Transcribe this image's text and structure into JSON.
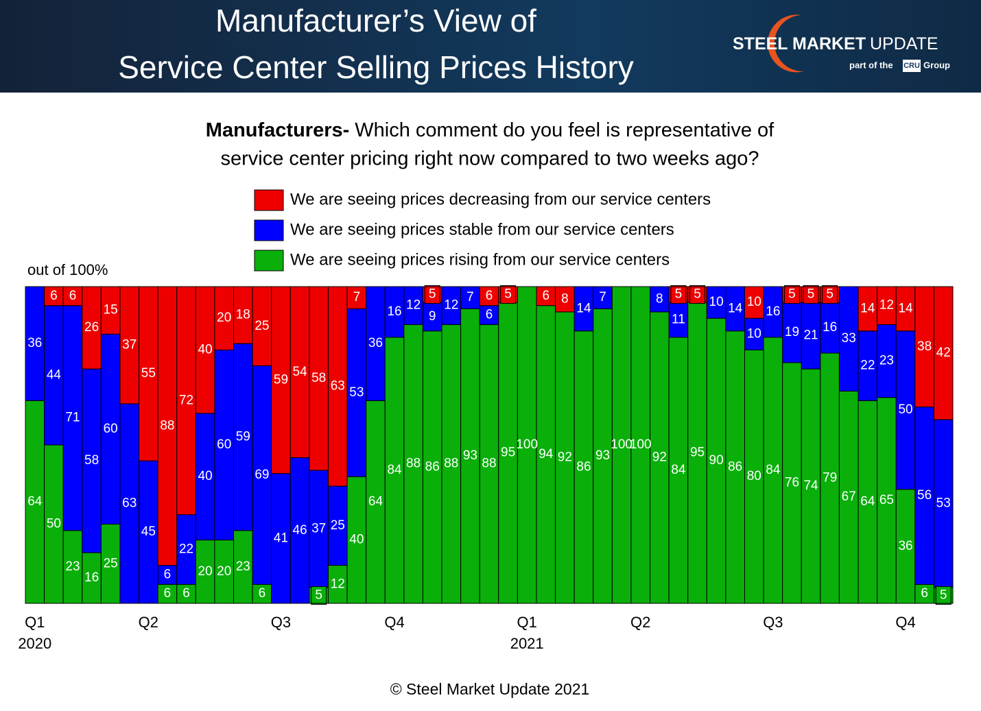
{
  "header": {
    "title_lines": [
      "Manufacturer’s View of",
      "Service Center Selling Prices History"
    ],
    "logo": {
      "brand_bold": "STEEL MARKET",
      "brand_light": "UPDATE",
      "tag_prefix": "part of the",
      "tag_badge": "CRU",
      "tag_suffix": "Group"
    }
  },
  "chart_data": {
    "type": "stacked-bar",
    "subtitle_bold": "Manufacturers-",
    "subtitle_lines": [
      "Which comment do you feel is representative of",
      "service center pricing right now compared to two weeks ago?"
    ],
    "y_label": "out of 100%",
    "ylim": [
      0,
      100
    ],
    "categories": [
      "Q1 2020",
      null,
      null,
      null,
      null,
      null,
      "Q2",
      null,
      null,
      null,
      null,
      null,
      null,
      "Q3",
      null,
      null,
      null,
      null,
      null,
      "Q4",
      null,
      null,
      null,
      null,
      null,
      null,
      "Q1 2021",
      null,
      null,
      null,
      null,
      null,
      "Q2",
      null,
      null,
      null,
      null,
      null,
      null,
      "Q3",
      null,
      null,
      null,
      null,
      null,
      null,
      "Q4",
      null,
      null
    ],
    "series": [
      {
        "name": "We are seeing prices rising from our service centers",
        "color": "#0aaf0a",
        "values": [
          64,
          50,
          23,
          16,
          25,
          0,
          0,
          6,
          6,
          20,
          20,
          23,
          6,
          0,
          0,
          5,
          12,
          40,
          64,
          84,
          88,
          86,
          88,
          93,
          88,
          95,
          100,
          94,
          92,
          86,
          93,
          100,
          100,
          92,
          84,
          95,
          90,
          86,
          80,
          84,
          76,
          74,
          79,
          67,
          64,
          65,
          36,
          6,
          5
        ]
      },
      {
        "name": "We are seeing prices stable from our service centers",
        "color": "#0000ff",
        "values": [
          36,
          44,
          71,
          58,
          60,
          63,
          45,
          6,
          22,
          40,
          60,
          59,
          69,
          41,
          46,
          37,
          25,
          53,
          36,
          16,
          12,
          9,
          12,
          7,
          6,
          0,
          0,
          0,
          0,
          14,
          7,
          0,
          0,
          8,
          11,
          0,
          10,
          14,
          10,
          16,
          19,
          21,
          16,
          33,
          22,
          23,
          50,
          56,
          53
        ]
      },
      {
        "name": "We are seeing prices decreasing from our service centers",
        "color": "#ee0000",
        "values": [
          0,
          6,
          6,
          26,
          15,
          37,
          55,
          88,
          72,
          40,
          20,
          18,
          25,
          59,
          54,
          58,
          63,
          7,
          0,
          0,
          0,
          5,
          0,
          0,
          6,
          5,
          0,
          6,
          8,
          0,
          0,
          0,
          0,
          0,
          5,
          5,
          0,
          0,
          10,
          0,
          5,
          5,
          5,
          0,
          14,
          12,
          14,
          38,
          42
        ]
      }
    ]
  },
  "footer": "© Steel Market Update 2021"
}
